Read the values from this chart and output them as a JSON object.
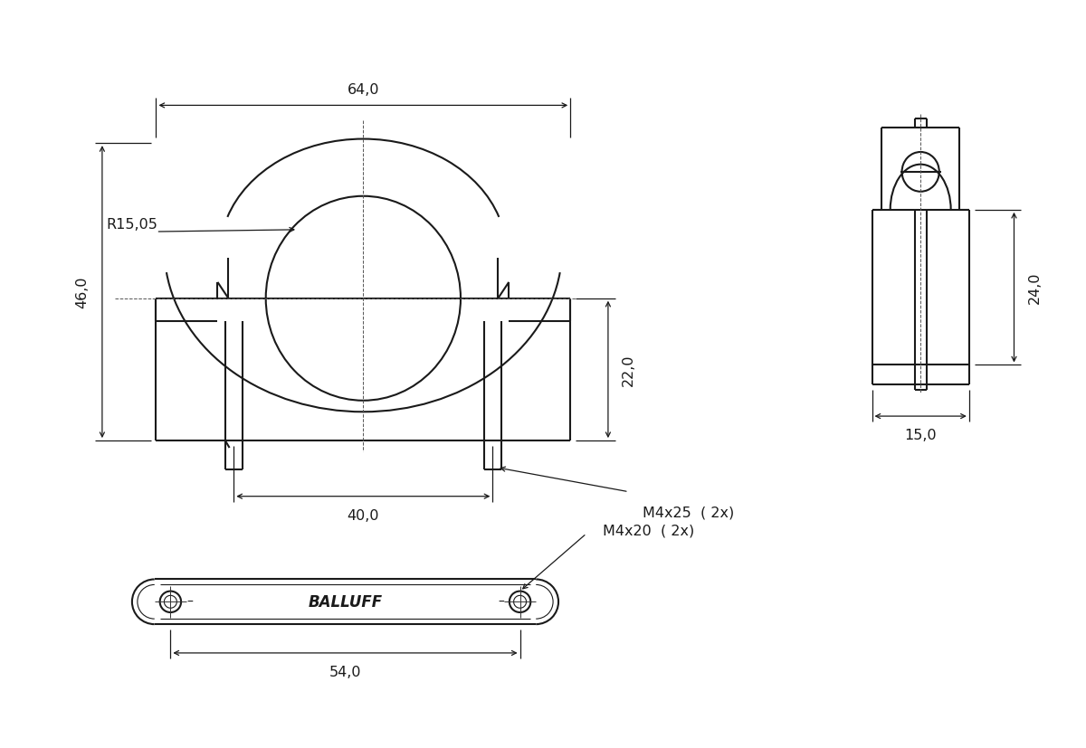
{
  "bg_color": "#ffffff",
  "line_color": "#1a1a1a",
  "lw_main": 1.5,
  "lw_thin": 0.8,
  "lw_dim": 0.9,
  "font_size": 11.5,
  "scale": 0.072,
  "fvx": 4.0,
  "fvy": 5.05,
  "svx": 10.2,
  "svy": 5.1,
  "bvx": 3.8,
  "bvy": 1.6,
  "labels": {
    "dim_64": "64,0",
    "dim_46": "46,0",
    "dim_40": "40,0",
    "dim_22": "22,0",
    "dim_r": "R15,05",
    "dim_m4x25": "M4x25  ( 2x)",
    "dim_24": "24,0",
    "dim_15": "15,0",
    "dim_54": "54,0",
    "dim_m4x20": "M4x20  ( 2x)",
    "balluff": "BALLUFF"
  }
}
